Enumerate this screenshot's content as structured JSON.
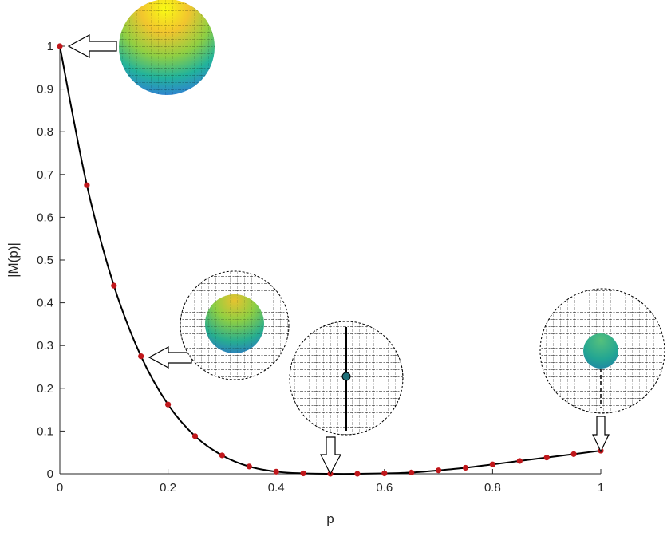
{
  "chart_data": {
    "type": "line",
    "title": "",
    "xlabel": "p",
    "ylabel": "|M(p)|",
    "xlim": [
      0,
      1
    ],
    "ylim": [
      0,
      1
    ],
    "xticks": [
      "0",
      "0.2",
      "0.4",
      "0.6",
      "0.8",
      "1"
    ],
    "yticks": [
      "0",
      "0.1",
      "0.2",
      "0.3",
      "0.4",
      "0.5",
      "0.6",
      "0.7",
      "0.8",
      "0.9",
      "1"
    ],
    "grid": false,
    "legend": "none",
    "series": [
      {
        "x": [
          0,
          0.05,
          0.1,
          0.15,
          0.2,
          0.25,
          0.3,
          0.35,
          0.4,
          0.45,
          0.5,
          0.55,
          0.6,
          0.65,
          0.7,
          0.75,
          0.8,
          0.85,
          0.9,
          0.95,
          1.0
        ],
        "y": [
          1.0,
          0.675,
          0.44,
          0.275,
          0.162,
          0.088,
          0.043,
          0.017,
          0.005,
          0.001,
          0.0,
          0.0,
          0.001,
          0.003,
          0.008,
          0.014,
          0.022,
          0.03,
          0.038,
          0.046,
          0.054
        ],
        "line_color": "#000000",
        "marker_color": "#c0171b"
      }
    ],
    "annotations": [
      {
        "at_x": 0,
        "at_y": 1.0,
        "arrow": "left",
        "depicts": "solid-sphere"
      },
      {
        "at_x": 0.15,
        "at_y": 0.275,
        "arrow": "left",
        "depicts": "wire-sphere-with-inner-sphere"
      },
      {
        "at_x": 0.5,
        "at_y": 0.0,
        "arrow": "down",
        "depicts": "wire-sphere-with-tiny-core"
      },
      {
        "at_x": 1.0,
        "at_y": 0.054,
        "arrow": "down",
        "depicts": "wire-sphere-with-small-inner-sphere"
      }
    ]
  }
}
